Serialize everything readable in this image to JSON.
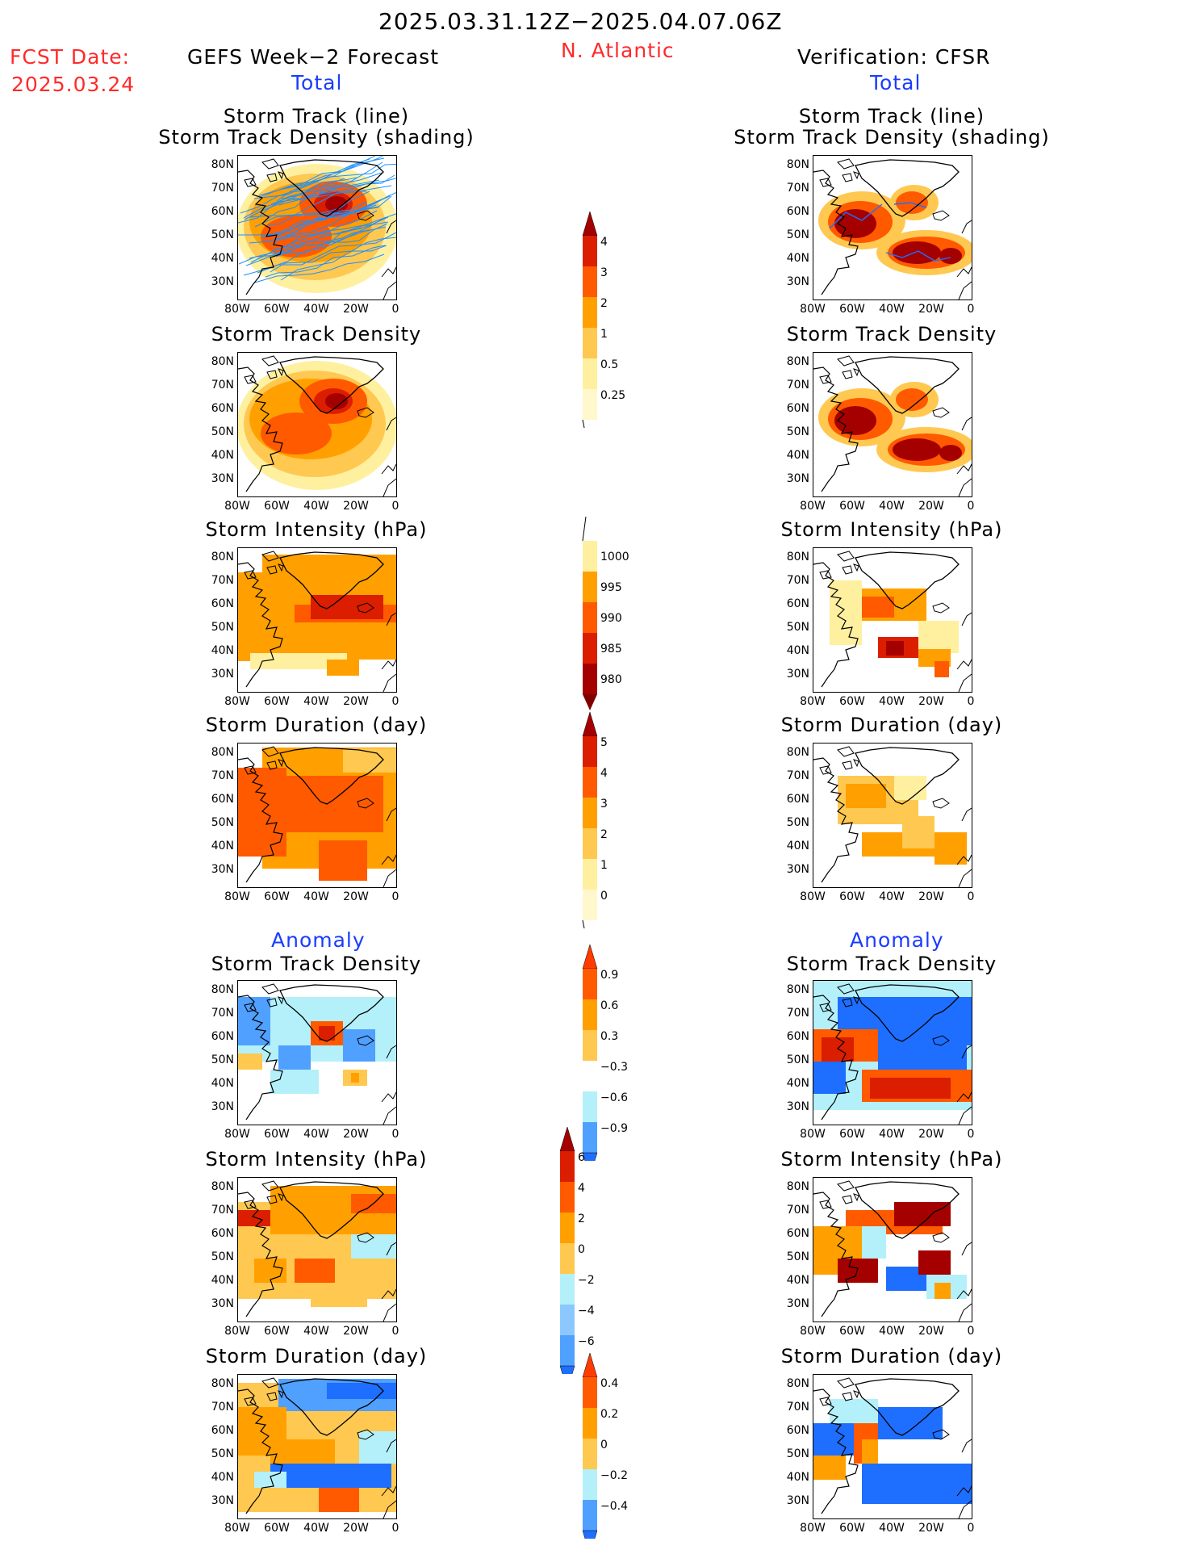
{
  "header": {
    "date_range": "2025.03.31.12Z−2025.04.07.06Z",
    "fcst_label": "FCST Date:",
    "fcst_date": "2025.03.24",
    "left_title": "GEFS Week−2 Forecast",
    "region": "N. Atlantic",
    "right_title": "Verification: CFSR"
  },
  "sections": {
    "total": "Total",
    "anomaly": "Anomaly"
  },
  "panel_titles": {
    "track_line": "Storm Track (line)",
    "track_shading": "Storm Track Density (shading)",
    "density": "Storm Track Density",
    "intensity": "Storm Intensity (hPa)",
    "duration": "Storm Duration (day)"
  },
  "axes": {
    "lat_labels": [
      "80N",
      "70N",
      "60N",
      "50N",
      "40N",
      "30N"
    ],
    "lon_labels": [
      "80W",
      "60W",
      "40W",
      "20W",
      "0"
    ]
  },
  "colorbars": {
    "density_total": [
      "4",
      "3",
      "2",
      "1",
      "0.5",
      "0.25"
    ],
    "intensity_total": [
      "1000",
      "995",
      "990",
      "985",
      "980"
    ],
    "duration_total": [
      "5",
      "4",
      "3",
      "2",
      "1",
      "0"
    ],
    "density_anom": [
      "0.9",
      "0.6",
      "0.3",
      "−0.3",
      "−0.6",
      "−0.9"
    ],
    "intensity_anom": [
      "6",
      "4",
      "2",
      "0",
      "−2",
      "−4",
      "−6"
    ],
    "duration_anom": [
      "0.4",
      "0.2",
      "0",
      "−0.2",
      "−0.4"
    ]
  },
  "colors": {
    "red_text": "#ff2a2a",
    "blue_text": "#1a3cff",
    "dark_red": "#a50000",
    "red": "#dc1e00",
    "orange_red": "#ff5a00",
    "orange": "#ffa000",
    "light_orange": "#ffc850",
    "pale_yellow": "#fff0a0",
    "light_blue": "#b4f0fa",
    "mid_blue": "#50a0ff",
    "blue": "#1e6eff"
  }
}
